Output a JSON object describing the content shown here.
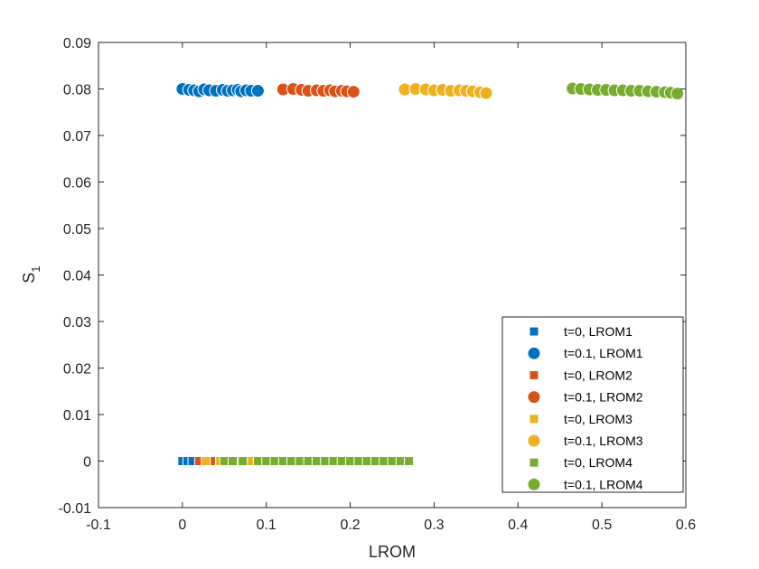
{
  "chart_data": {
    "type": "scatter",
    "xlabel": "LROM",
    "ylabel": {
      "main": "S",
      "sub": "1"
    },
    "xlim": [
      -0.1,
      0.6
    ],
    "ylim": [
      -0.01,
      0.09
    ],
    "xticks": [
      "-0.1",
      "0",
      "0.1",
      "0.2",
      "0.3",
      "0.4",
      "0.5",
      "0.6"
    ],
    "yticks": [
      "-0.01",
      "0",
      "0.01",
      "0.02",
      "0.03",
      "0.04",
      "0.05",
      "0.06",
      "0.07",
      "0.08",
      "0.09"
    ],
    "grid": false,
    "legend_position": "bottom-right",
    "series": [
      {
        "name": "t=0, LROM1",
        "marker": "square",
        "color": "#0072BD",
        "points": [
          [
            0.0,
            0
          ],
          [
            0.006,
            0
          ],
          [
            0.012,
            0
          ],
          [
            0.022,
            0
          ],
          [
            0.03,
            0
          ],
          [
            0.04,
            0
          ],
          [
            0.05,
            0
          ],
          [
            0.06,
            0
          ],
          [
            0.07,
            0
          ],
          [
            0.08,
            0
          ],
          [
            0.088,
            0
          ]
        ]
      },
      {
        "name": "t=0.1, LROM1",
        "marker": "circle",
        "color": "#0072BD",
        "points": [
          [
            0.0,
            0.08
          ],
          [
            0.008,
            0.0798
          ],
          [
            0.014,
            0.0797
          ],
          [
            0.02,
            0.0795
          ],
          [
            0.026,
            0.0799
          ],
          [
            0.032,
            0.0797
          ],
          [
            0.04,
            0.0796
          ],
          [
            0.048,
            0.0798
          ],
          [
            0.054,
            0.0796
          ],
          [
            0.06,
            0.0797
          ],
          [
            0.066,
            0.0798
          ],
          [
            0.07,
            0.0795
          ],
          [
            0.076,
            0.0797
          ],
          [
            0.082,
            0.0796
          ],
          [
            0.09,
            0.0796
          ]
        ]
      },
      {
        "name": "t=0, LROM2",
        "marker": "square",
        "color": "#D95319",
        "points": [
          [
            0.02,
            0
          ],
          [
            0.034,
            0
          ],
          [
            0.06,
            0
          ],
          [
            0.08,
            0
          ]
        ]
      },
      {
        "name": "t=0.1, LROM2",
        "marker": "circle",
        "color": "#D95319",
        "points": [
          [
            0.12,
            0.0799
          ],
          [
            0.132,
            0.08
          ],
          [
            0.142,
            0.0798
          ],
          [
            0.15,
            0.0796
          ],
          [
            0.16,
            0.0797
          ],
          [
            0.168,
            0.0796
          ],
          [
            0.176,
            0.0797
          ],
          [
            0.182,
            0.0795
          ],
          [
            0.19,
            0.0796
          ],
          [
            0.196,
            0.0795
          ],
          [
            0.204,
            0.0794
          ]
        ]
      },
      {
        "name": "t=0, LROM3",
        "marker": "square",
        "color": "#EDB120",
        "points": [
          [
            0.028,
            0
          ],
          [
            0.045,
            0
          ],
          [
            0.055,
            0
          ],
          [
            0.068,
            0
          ],
          [
            0.082,
            0
          ],
          [
            0.12,
            0
          ],
          [
            0.16,
            0
          ]
        ]
      },
      {
        "name": "t=0.1, LROM3",
        "marker": "circle",
        "color": "#EDB120",
        "points": [
          [
            0.265,
            0.0799
          ],
          [
            0.278,
            0.08
          ],
          [
            0.29,
            0.0799
          ],
          [
            0.3,
            0.0797
          ],
          [
            0.31,
            0.0798
          ],
          [
            0.32,
            0.0796
          ],
          [
            0.33,
            0.0797
          ],
          [
            0.338,
            0.0796
          ],
          [
            0.346,
            0.0795
          ],
          [
            0.355,
            0.0793
          ],
          [
            0.362,
            0.0791
          ]
        ]
      },
      {
        "name": "t=0, LROM4",
        "marker": "square",
        "color": "#77AC30",
        "points": [
          [
            0.05,
            0
          ],
          [
            0.06,
            0
          ],
          [
            0.072,
            0
          ],
          [
            0.09,
            0
          ],
          [
            0.1,
            0
          ],
          [
            0.11,
            0
          ],
          [
            0.12,
            0
          ],
          [
            0.13,
            0
          ],
          [
            0.14,
            0
          ],
          [
            0.15,
            0
          ],
          [
            0.16,
            0
          ],
          [
            0.17,
            0
          ],
          [
            0.18,
            0
          ],
          [
            0.19,
            0
          ],
          [
            0.2,
            0
          ],
          [
            0.21,
            0
          ],
          [
            0.22,
            0
          ],
          [
            0.23,
            0
          ],
          [
            0.24,
            0
          ],
          [
            0.25,
            0
          ],
          [
            0.26,
            0
          ],
          [
            0.27,
            0
          ]
        ]
      },
      {
        "name": "t=0.1, LROM4",
        "marker": "circle",
        "color": "#77AC30",
        "points": [
          [
            0.465,
            0.0801
          ],
          [
            0.475,
            0.08
          ],
          [
            0.485,
            0.0799
          ],
          [
            0.495,
            0.0798
          ],
          [
            0.505,
            0.0798
          ],
          [
            0.515,
            0.0797
          ],
          [
            0.525,
            0.0797
          ],
          [
            0.535,
            0.0796
          ],
          [
            0.545,
            0.0796
          ],
          [
            0.555,
            0.0795
          ],
          [
            0.565,
            0.0794
          ],
          [
            0.575,
            0.0793
          ],
          [
            0.582,
            0.0792
          ],
          [
            0.59,
            0.079
          ]
        ]
      }
    ]
  }
}
